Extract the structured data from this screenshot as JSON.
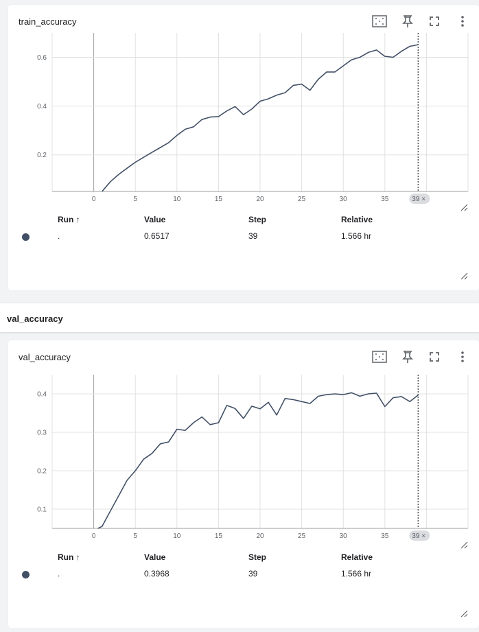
{
  "charts": [
    {
      "title": "train_accuracy",
      "x_ticks": [
        "0",
        "5",
        "10",
        "15",
        "20",
        "25",
        "30",
        "35"
      ],
      "y_ticks": [
        "0.2",
        "0.4",
        "0.6"
      ],
      "cursor_label": "39",
      "table": {
        "headers": {
          "run": "Run ↑",
          "value": "Value",
          "step": "Step",
          "relative": "Relative"
        },
        "row": {
          "run": ".",
          "value": "0.6517",
          "step": "39",
          "relative": "1.566 hr"
        }
      }
    },
    {
      "title": "val_accuracy",
      "x_ticks": [
        "0",
        "5",
        "10",
        "15",
        "20",
        "25",
        "30",
        "35"
      ],
      "y_ticks": [
        "0.1",
        "0.2",
        "0.3",
        "0.4"
      ],
      "cursor_label": "39",
      "table": {
        "headers": {
          "run": "Run ↑",
          "value": "Value",
          "step": "Step",
          "relative": "Relative"
        },
        "row": {
          "run": ".",
          "value": "0.3968",
          "step": "39",
          "relative": "1.566 hr"
        }
      }
    }
  ],
  "section": {
    "title": "val_accuracy"
  },
  "colors": {
    "line": "#425066",
    "grid": "#e0e0e0",
    "axis": "#9e9e9e",
    "run_dot": "#425066"
  },
  "icons": [
    "fit-domain-icon",
    "pin-icon",
    "fullscreen-icon",
    "more-vert-icon",
    "resize-handle-icon"
  ],
  "chart_data": [
    {
      "type": "line",
      "title": "train_accuracy",
      "xlabel": "",
      "ylabel": "",
      "xlim": [
        -5,
        45
      ],
      "ylim": [
        0.05,
        0.7
      ],
      "grid": true,
      "cursor_step": 39,
      "series": [
        {
          "x": [
            1,
            2,
            3,
            4,
            5,
            6,
            7,
            8,
            9,
            10,
            11,
            12,
            13,
            14,
            15,
            16,
            17,
            18,
            19,
            20,
            21,
            22,
            23,
            24,
            25,
            26,
            27,
            28,
            29,
            30,
            31,
            32,
            33,
            34,
            35,
            36,
            37,
            38,
            39
          ],
          "values": [
            0.05,
            0.09,
            0.12,
            0.145,
            0.17,
            0.19,
            0.21,
            0.23,
            0.25,
            0.28,
            0.305,
            0.315,
            0.345,
            0.355,
            0.357,
            0.38,
            0.398,
            0.365,
            0.388,
            0.42,
            0.43,
            0.445,
            0.455,
            0.485,
            0.49,
            0.465,
            0.51,
            0.54,
            0.54,
            0.565,
            0.59,
            0.6,
            0.62,
            0.63,
            0.604,
            0.6,
            0.625,
            0.645,
            0.652
          ]
        }
      ]
    },
    {
      "type": "line",
      "title": "val_accuracy",
      "xlabel": "",
      "ylabel": "",
      "xlim": [
        -5,
        45
      ],
      "ylim": [
        0.05,
        0.45
      ],
      "grid": true,
      "cursor_step": 39,
      "series": [
        {
          "x": [
            0.5,
            1,
            2,
            3,
            4,
            5,
            6,
            7,
            8,
            9,
            10,
            11,
            12,
            13,
            14,
            15,
            16,
            17,
            18,
            19,
            20,
            21,
            22,
            23,
            24,
            25,
            26,
            27,
            28,
            29,
            30,
            31,
            32,
            33,
            34,
            35,
            36,
            37,
            38,
            39
          ],
          "values": [
            0.05,
            0.055,
            0.095,
            0.135,
            0.175,
            0.2,
            0.23,
            0.245,
            0.27,
            0.275,
            0.308,
            0.305,
            0.325,
            0.34,
            0.32,
            0.325,
            0.37,
            0.362,
            0.336,
            0.368,
            0.361,
            0.378,
            0.345,
            0.388,
            0.385,
            0.38,
            0.375,
            0.394,
            0.398,
            0.4,
            0.398,
            0.403,
            0.394,
            0.4,
            0.402,
            0.367,
            0.39,
            0.393,
            0.38,
            0.397
          ]
        }
      ]
    }
  ]
}
